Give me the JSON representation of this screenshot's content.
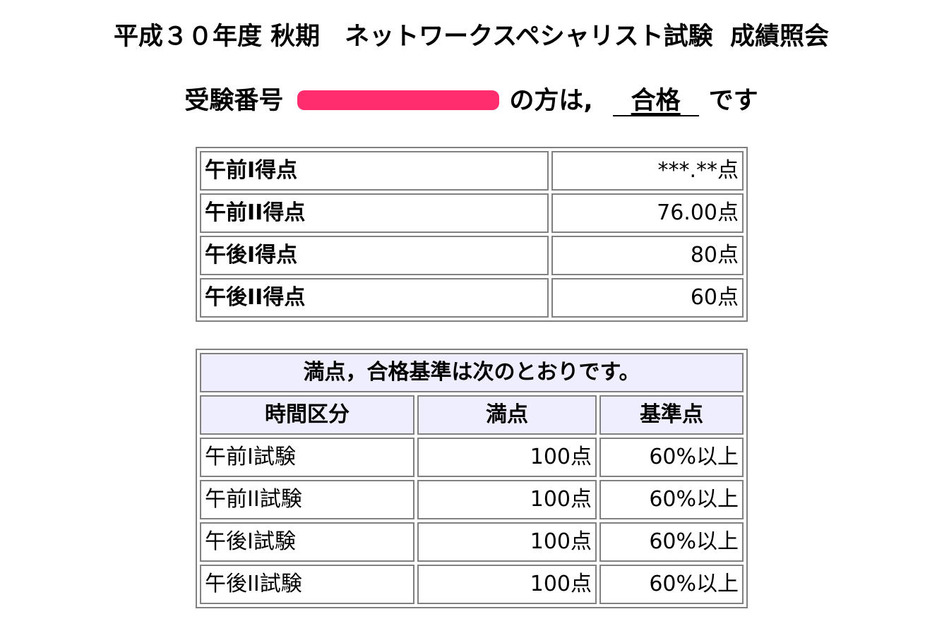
{
  "header": {
    "title": "平成３０年度 秋期　ネットワークスペシャリスト試験  成績照会"
  },
  "result": {
    "prefix": "受験番号",
    "suffix": "の方は,",
    "status": "合格",
    "ending": "です"
  },
  "scores": [
    {
      "label": "午前I得点",
      "value": "***.**点"
    },
    {
      "label": "午前II得点",
      "value": "76.00点"
    },
    {
      "label": "午後I得点",
      "value": "80点"
    },
    {
      "label": "午後II得点",
      "value": "60点"
    }
  ],
  "criteria": {
    "caption": "満点，合格基準は次のとおりです。",
    "headers": [
      "時間区分",
      "満点",
      "基準点"
    ],
    "rows": [
      {
        "name": "午前I試験",
        "full": "100点",
        "pass": "60%以上"
      },
      {
        "name": "午前II試験",
        "full": "100点",
        "pass": "60%以上"
      },
      {
        "name": "午後I試験",
        "full": "100点",
        "pass": "60%以上"
      },
      {
        "name": "午後II試験",
        "full": "100点",
        "pass": "60%以上"
      }
    ]
  },
  "colors": {
    "redaction": "#ff2d6e",
    "header_bg": "#eeeeff",
    "border": "#808080"
  }
}
